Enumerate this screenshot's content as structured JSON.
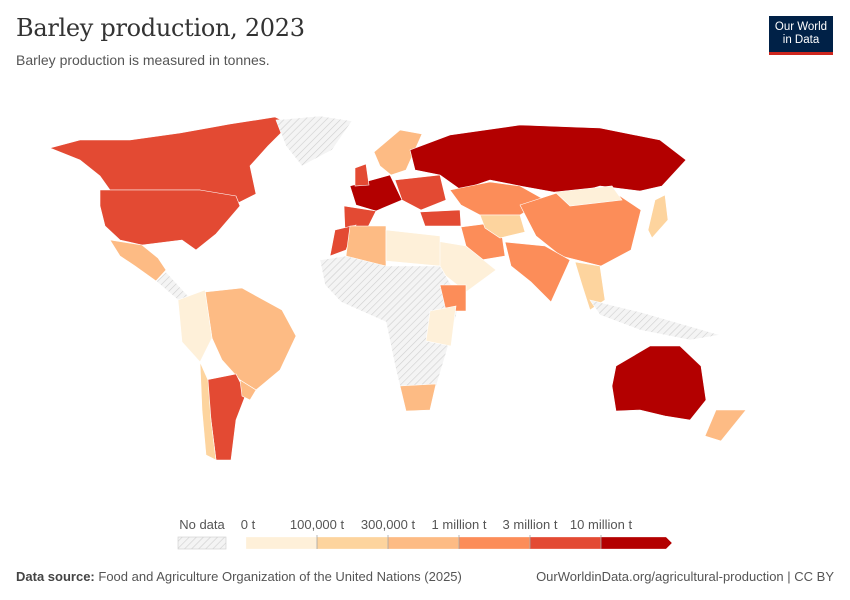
{
  "header": {
    "title": "Barley production, 2023",
    "subtitle": "Barley production is measured in tonnes.",
    "logo_line1": "Our World",
    "logo_line2": "in Data"
  },
  "legend": {
    "no_data_label": "No data",
    "bins": [
      {
        "label": "0 t",
        "color": "#fef0d9"
      },
      {
        "label": "100,000 t",
        "color": "#fdd49e"
      },
      {
        "label": "300,000 t",
        "color": "#fdbb84"
      },
      {
        "label": "1 million t",
        "color": "#fc8d59"
      },
      {
        "label": "3 million t",
        "color": "#e34a33"
      },
      {
        "label": "10 million t",
        "color": "#b30000"
      }
    ],
    "no_data_color": "hatched-gray"
  },
  "map_data": {
    "regions": [
      {
        "id": "canada",
        "bin": 4
      },
      {
        "id": "united-states",
        "bin": 4
      },
      {
        "id": "greenland",
        "bin": null
      },
      {
        "id": "mexico",
        "bin": 2
      },
      {
        "id": "central-america",
        "bin": null
      },
      {
        "id": "brazil",
        "bin": 2
      },
      {
        "id": "andean-south-america",
        "bin": 0
      },
      {
        "id": "argentina",
        "bin": 4
      },
      {
        "id": "chile",
        "bin": 1
      },
      {
        "id": "uruguay",
        "bin": 2
      },
      {
        "id": "western-europe",
        "bin": 5
      },
      {
        "id": "spain",
        "bin": 4
      },
      {
        "id": "united-kingdom",
        "bin": 4
      },
      {
        "id": "scandinavia",
        "bin": 2
      },
      {
        "id": "eastern-europe",
        "bin": 4
      },
      {
        "id": "turkey",
        "bin": 4
      },
      {
        "id": "russia",
        "bin": 5
      },
      {
        "id": "kazakhstan",
        "bin": 3
      },
      {
        "id": "iran",
        "bin": 3
      },
      {
        "id": "arabia",
        "bin": 0
      },
      {
        "id": "central-asia",
        "bin": 1
      },
      {
        "id": "china",
        "bin": 3
      },
      {
        "id": "mongolia",
        "bin": 0
      },
      {
        "id": "india",
        "bin": 3
      },
      {
        "id": "japan",
        "bin": 1
      },
      {
        "id": "southeast-asia",
        "bin": 1
      },
      {
        "id": "morocco",
        "bin": 4
      },
      {
        "id": "algeria",
        "bin": 2
      },
      {
        "id": "libya-egypt",
        "bin": 0
      },
      {
        "id": "sub-saharan-africa",
        "bin": null
      },
      {
        "id": "ethiopia",
        "bin": 3
      },
      {
        "id": "east-africa",
        "bin": 0
      },
      {
        "id": "south-africa",
        "bin": 2
      },
      {
        "id": "indonesia",
        "bin": null
      },
      {
        "id": "australia",
        "bin": 5
      },
      {
        "id": "new-zealand",
        "bin": 2
      }
    ]
  },
  "footer": {
    "source_label": "Data source:",
    "source_text": "Food and Agriculture Organization of the United Nations (2025)",
    "url_text": "OurWorldinData.org/agricultural-production | CC BY"
  }
}
